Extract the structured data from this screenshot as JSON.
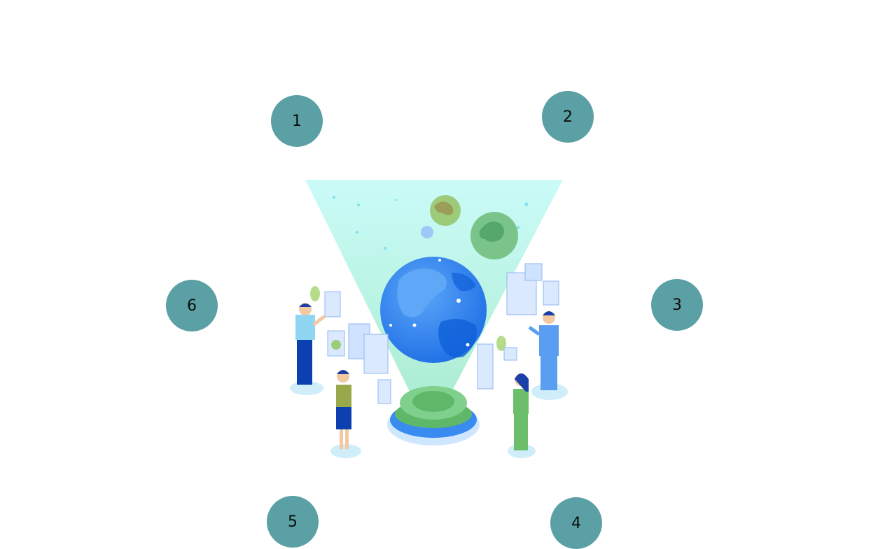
{
  "diagram": {
    "markers": [
      {
        "label": "1"
      },
      {
        "label": "2"
      },
      {
        "label": "3"
      },
      {
        "label": "4"
      },
      {
        "label": "5"
      },
      {
        "label": "6"
      }
    ],
    "marker_color": "#5aa0a5",
    "illustration": "global-network-hologram-with-four-people"
  },
  "colors": {
    "beam_top": "#c8fbf8",
    "beam_bottom": "#a8ecd8",
    "globe_blue": "#2f7ff0",
    "planet_green": "#7ac48a",
    "base_blue": "#3a8bf0",
    "base_green": "#5fb86a"
  }
}
